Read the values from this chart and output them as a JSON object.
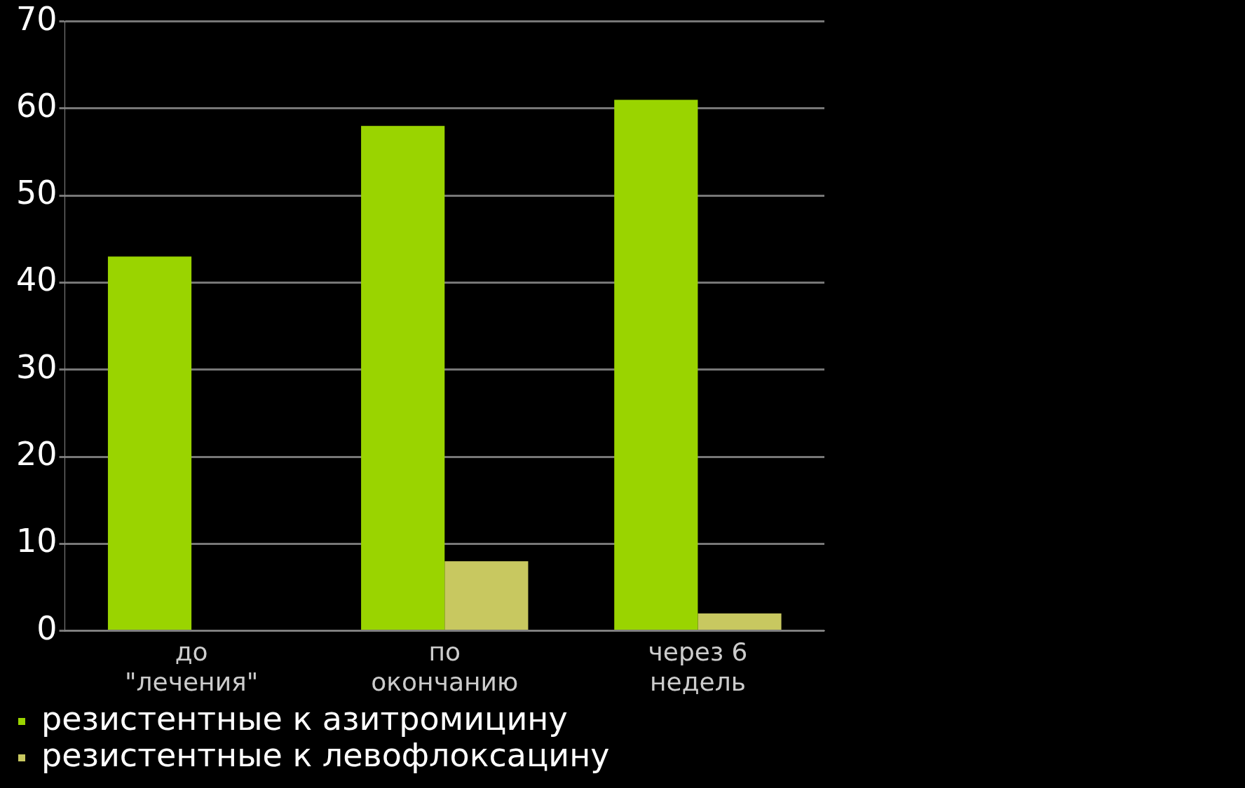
{
  "chart_data": {
    "type": "bar",
    "categories": [
      "до \"лечения\"",
      "по окончанию",
      "через 6 недель"
    ],
    "series": [
      {
        "name": "резистентные к азитромицину",
        "color": "#9ad400",
        "values": [
          43,
          58,
          61
        ]
      },
      {
        "name": "резистентные к левофлоксацину",
        "color": "#c8c860",
        "values": [
          0,
          8,
          2
        ]
      }
    ],
    "ylim": [
      0,
      70
    ],
    "yticks": [
      0,
      10,
      20,
      30,
      40,
      50,
      60,
      70
    ],
    "grid": "y",
    "legend": "bottom"
  }
}
